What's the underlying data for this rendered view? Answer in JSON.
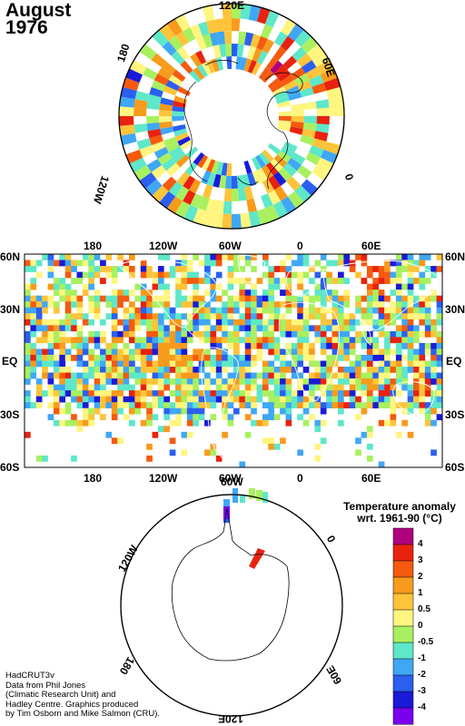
{
  "title": {
    "month": "August",
    "year": "1976"
  },
  "north_polar": {
    "labels": {
      "top": "120E",
      "left": "180",
      "right": "60E",
      "lower_left": "120W",
      "lower_right": "0"
    }
  },
  "main_map": {
    "lon_labels": [
      "180",
      "120W",
      "60W",
      "0",
      "60E"
    ],
    "lat_labels": [
      "60N",
      "30N",
      "EQ",
      "30S",
      "60S"
    ]
  },
  "south_polar": {
    "labels": {
      "top": "60W",
      "left": "120W",
      "right": "0",
      "lower_left": "180",
      "lower_right": "60E",
      "bottom": "120E"
    }
  },
  "legend": {
    "title_line1": "Temperature anomaly",
    "title_line2": "wrt. 1961-90  (°C)",
    "levels": [
      "4",
      "3",
      "2",
      "1",
      "0.5",
      "0",
      "-0.5",
      "-1",
      "-2",
      "-3",
      "-4"
    ],
    "colors": [
      "#b0007e",
      "#e8220e",
      "#f55a0f",
      "#f89a1b",
      "#fdc43a",
      "#fff57f",
      "#a9f060",
      "#5ee7c8",
      "#40a7f5",
      "#2b5ff0",
      "#1a1ad8",
      "#7a00f0"
    ]
  },
  "credits": [
    "HadCRUT3v",
    "Data from Phil Jones",
    "(Climatic Research Unit) and",
    "Hadley Centre.  Graphics produced",
    "by Tim Osborn and Mike Salmon (CRU)."
  ]
}
